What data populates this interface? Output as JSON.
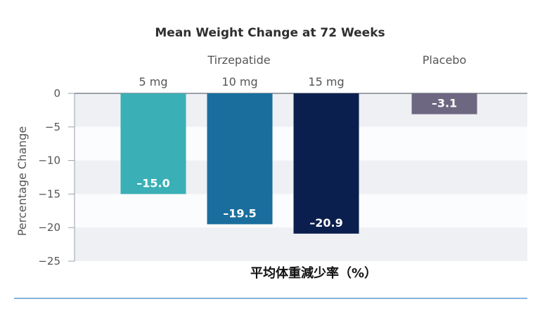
{
  "chart_data": {
    "type": "bar",
    "title": "Mean Weight Change at 72 Weeks",
    "group_labels": [
      "Tirzepatide",
      "Placebo"
    ],
    "categories": [
      "5 mg",
      "10 mg",
      "15 mg",
      "Placebo"
    ],
    "values": [
      -15.0,
      -19.5,
      -20.9,
      -3.1
    ],
    "value_labels": [
      "–15.0",
      "–19.5",
      "–20.9",
      "–3.1"
    ],
    "bar_colors": [
      "#3aafb6",
      "#1a6e9e",
      "#0b1f4e",
      "#6e6781"
    ],
    "ylabel": "Percentage Change",
    "ylim": [
      -25,
      0
    ],
    "yticks": [
      0,
      -5,
      -10,
      -15,
      -20,
      -25
    ],
    "ytick_labels": [
      "0",
      "−5",
      "−10",
      "−15",
      "−20",
      "−25"
    ],
    "grid": "alternating horizontal bands",
    "caption": "平均体重減少率（%）",
    "colors": {
      "band_light": "#eef0f4",
      "band_white": "#fbfcfd",
      "axis": "#9aa0a8",
      "text": "#3a3a3a",
      "muted_text": "#555555",
      "rule": "#5b9bd5"
    }
  }
}
